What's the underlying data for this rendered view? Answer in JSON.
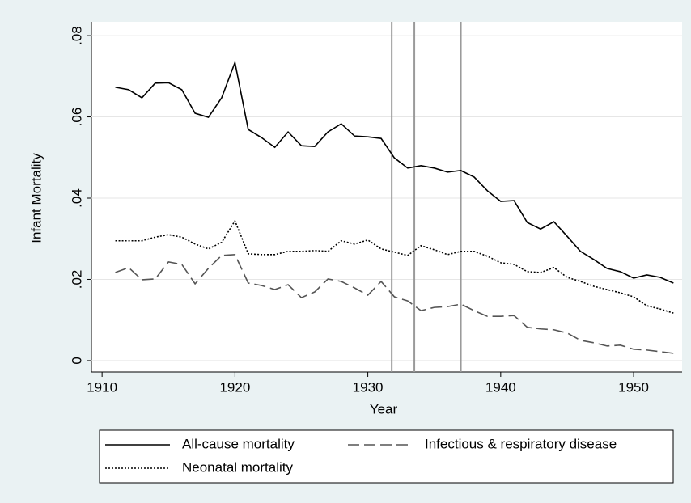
{
  "chart_data": {
    "type": "line",
    "x_label": "Year",
    "y_label": "Infant Mortality",
    "x": [
      1911,
      1912,
      1913,
      1914,
      1915,
      1916,
      1917,
      1918,
      1919,
      1920,
      1921,
      1922,
      1923,
      1924,
      1925,
      1926,
      1927,
      1928,
      1929,
      1930,
      1931,
      1932,
      1933,
      1934,
      1935,
      1936,
      1937,
      1938,
      1939,
      1940,
      1941,
      1942,
      1943,
      1944,
      1945,
      1946,
      1947,
      1948,
      1949,
      1950,
      1951,
      1952,
      1953
    ],
    "series": [
      {
        "name": "All-cause mortality",
        "color": "#000000",
        "dash": "solid",
        "values": [
          0.0673,
          0.0667,
          0.0647,
          0.0683,
          0.0684,
          0.0667,
          0.0609,
          0.0599,
          0.0647,
          0.0734,
          0.0569,
          0.0549,
          0.0525,
          0.0563,
          0.0529,
          0.0527,
          0.0563,
          0.0583,
          0.0553,
          0.0551,
          0.0547,
          0.0499,
          0.0474,
          0.048,
          0.0474,
          0.0464,
          0.0468,
          0.0452,
          0.0418,
          0.0392,
          0.0394,
          0.034,
          0.0324,
          0.0342,
          0.0306,
          0.0269,
          0.0249,
          0.0227,
          0.0219,
          0.0203,
          0.0211,
          0.0205,
          0.0191
        ]
      },
      {
        "name": "Infectious & respiratory disease",
        "color": "#555555",
        "dash": "dash",
        "values": [
          0.0217,
          0.0229,
          0.0199,
          0.0201,
          0.0243,
          0.0237,
          0.0189,
          0.0227,
          0.0259,
          0.0261,
          0.0191,
          0.0185,
          0.0175,
          0.0187,
          0.0155,
          0.0169,
          0.0201,
          0.0195,
          0.0179,
          0.0161,
          0.0195,
          0.0157,
          0.0147,
          0.0123,
          0.0131,
          0.0133,
          0.0139,
          0.0123,
          0.0109,
          0.0109,
          0.0111,
          0.0082,
          0.0078,
          0.0076,
          0.0068,
          0.005,
          0.0044,
          0.0036,
          0.0038,
          0.0028,
          0.0026,
          0.0022,
          0.0018
        ]
      },
      {
        "name": "Neonatal mortality",
        "color": "#000000",
        "dash": "dot",
        "values": [
          0.0295,
          0.0295,
          0.0295,
          0.0304,
          0.031,
          0.0304,
          0.0287,
          0.0275,
          0.0291,
          0.0344,
          0.0263,
          0.0261,
          0.0261,
          0.0269,
          0.0269,
          0.0271,
          0.0269,
          0.0295,
          0.0287,
          0.0297,
          0.0275,
          0.0267,
          0.0259,
          0.0283,
          0.0273,
          0.0261,
          0.0269,
          0.0269,
          0.0257,
          0.0241,
          0.0237,
          0.0219,
          0.0217,
          0.0229,
          0.0205,
          0.0195,
          0.0183,
          0.0175,
          0.0167,
          0.0157,
          0.0135,
          0.0127,
          0.0117
        ]
      }
    ],
    "xlines": [
      1931.8,
      1933.5,
      1937.0
    ],
    "xline_color": "#9a9a9a",
    "xlim": [
      1909.2,
      1953.65
    ],
    "xticks": [
      1910,
      1920,
      1930,
      1940,
      1950
    ],
    "ylim": [
      -0.0028,
      0.0834
    ],
    "yticks": [
      {
        "value": 0,
        "label": "0"
      },
      {
        "value": 0.02,
        "label": ".02"
      },
      {
        "value": 0.04,
        "label": ".04"
      },
      {
        "value": 0.06,
        "label": ".06"
      },
      {
        "value": 0.08,
        "label": ".08"
      }
    ],
    "grid": true,
    "legend": "bottom"
  }
}
